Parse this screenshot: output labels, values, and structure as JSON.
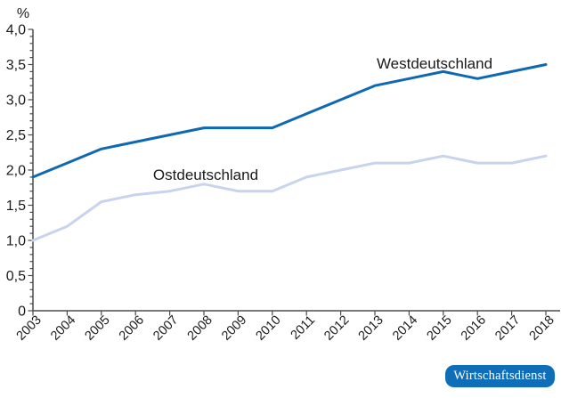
{
  "chart_data": {
    "type": "line",
    "title": "",
    "ylabel": "%",
    "xlabel": "",
    "ylim": [
      0,
      4.0
    ],
    "y_major_step": 0.5,
    "y_minor_step": 0.1,
    "grid": false,
    "legend_position": "inline-labels",
    "x": [
      2003,
      2004,
      2005,
      2006,
      2007,
      2008,
      2009,
      2010,
      2011,
      2012,
      2013,
      2014,
      2015,
      2016,
      2017,
      2018
    ],
    "series": [
      {
        "name": "Westdeutschland",
        "color": "#0e68b2",
        "values": [
          1.9,
          2.1,
          2.3,
          2.4,
          2.5,
          2.6,
          2.6,
          2.6,
          2.8,
          3.0,
          3.2,
          3.3,
          3.4,
          3.3,
          3.4,
          3.5
        ]
      },
      {
        "name": "Ostdeutschland",
        "color": "#c8d3ee",
        "values": [
          1.0,
          1.2,
          1.55,
          1.65,
          1.7,
          1.8,
          1.7,
          1.7,
          1.9,
          2.0,
          2.1,
          2.1,
          2.2,
          2.1,
          2.1,
          2.2
        ]
      }
    ],
    "colors": {
      "axis": "#4d4d4d",
      "text": "#1a1a1a"
    }
  },
  "badge": {
    "label": "Wirtschaftsdienst",
    "color": "#0e6fb8"
  }
}
